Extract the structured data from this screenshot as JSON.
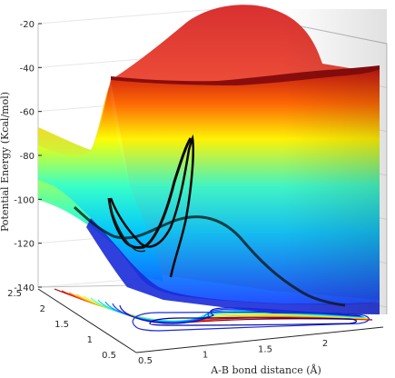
{
  "chart_data": {
    "type": "surface",
    "title": "",
    "xlabel": "A-B bond distance (Å)",
    "ylabel": "",
    "zlabel": "Potential Energy (Kcal/mol)",
    "x_ticks": [
      "0.5",
      "1",
      "1.5",
      "2"
    ],
    "y_ticks": [
      "0.5",
      "1",
      "1.5",
      "2",
      "2.5"
    ],
    "z_ticks": [
      "-20",
      "-40",
      "-60",
      "-80",
      "-100",
      "-120",
      "-140"
    ],
    "zlim": [
      -140,
      -20
    ],
    "grid": true,
    "colormap": "jet",
    "contour_projection": true,
    "trajectory": {
      "color": "#000000",
      "x": [
        0.62,
        0.7,
        0.8,
        0.95,
        1.1,
        1.25,
        1.4,
        1.55,
        1.7,
        1.85,
        2.0,
        2.15,
        2.3
      ],
      "y": [
        1.5,
        1.45,
        1.3,
        1.1,
        0.95,
        0.85,
        0.8,
        0.78,
        0.76,
        0.75,
        0.75,
        0.75,
        0.75
      ],
      "z": [
        -103,
        -108,
        -112,
        -114,
        -112,
        -108,
        -104,
        -106,
        -113,
        -121,
        -128,
        -133,
        -136
      ]
    }
  }
}
